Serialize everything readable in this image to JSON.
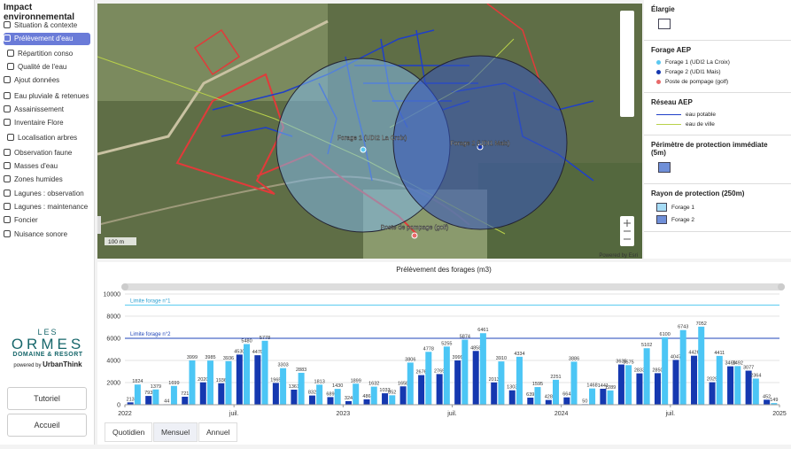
{
  "sidebar": {
    "title": "Impact environnemental",
    "items": [
      {
        "label": "Situation & contexte",
        "level": 0
      },
      {
        "label": "Prélèvement d'eau",
        "level": 0,
        "selected": true
      },
      {
        "label": "Répartition conso",
        "level": 1
      },
      {
        "label": "Qualité de l'eau",
        "level": 1
      },
      {
        "label": "Ajout données",
        "level": 0
      },
      {
        "label": "Eau pluviale & retenues",
        "level": 0
      },
      {
        "label": "Assainissement",
        "level": 0
      },
      {
        "label": "Inventaire Flore",
        "level": 0
      },
      {
        "label": "Localisation arbres",
        "level": 1
      },
      {
        "label": "Observation faune",
        "level": 0
      },
      {
        "label": "Masses d'eau",
        "level": 0
      },
      {
        "label": "Zones humides",
        "level": 0
      },
      {
        "label": "Lagunes : observation",
        "level": 0
      },
      {
        "label": "Lagunes : maintenance",
        "level": 0
      },
      {
        "label": "Foncier",
        "level": 0
      },
      {
        "label": "Nuisance sonore",
        "level": 0
      }
    ],
    "logo": {
      "line1": "LES",
      "line2": "ORMES",
      "line3": "DOMAINE & RESORT",
      "powered": "powered by",
      "brand": "UrbanThink"
    },
    "buttons": [
      "Tutoriel",
      "Accueil"
    ]
  },
  "map": {
    "labels": {
      "forage1": "Forage 1 (UDI2 La Croix)",
      "forage2": "Forage 2 (UDI1 Mais)",
      "poste": "Poste de pompage (golf)"
    },
    "scale": "100 m",
    "attribution": "Powered by Esri"
  },
  "legend": {
    "sections": [
      {
        "title": "Élargie",
        "items": []
      },
      {
        "title": "Forage AEP",
        "items": [
          "Forage 1 (UDI2 La Croix)",
          "Forage 2 (UDI1 Mais)",
          "Poste de pompage (golf)"
        ]
      },
      {
        "title": "Réseau AEP",
        "items": [
          "eau potable",
          "eau de ville"
        ]
      },
      {
        "title": "Périmètre de protection immédiate (5m)",
        "items": []
      },
      {
        "title": "Rayon de protection (250m)",
        "items": [
          "Forage 1",
          "Forage 2"
        ]
      }
    ]
  },
  "tabs": [
    "Quotidien",
    "Mensuel",
    "Annuel"
  ],
  "chart_data": {
    "type": "bar",
    "title": "Prélèvement des forages (m3)",
    "xlim": [
      0,
      36
    ],
    "xticks": [
      {
        "value": 0,
        "label": "2022"
      },
      {
        "value": 6,
        "label": "juil."
      },
      {
        "value": 12,
        "label": "2023"
      },
      {
        "value": 18,
        "label": "juil."
      },
      {
        "value": 24,
        "label": "2024"
      },
      {
        "value": 30,
        "label": "juil."
      },
      {
        "value": 36,
        "label": "2025"
      }
    ],
    "ylim": [
      0,
      10000
    ],
    "yticks": [
      0,
      2000,
      4000,
      6000,
      8000,
      10000
    ],
    "grid": true,
    "series": [
      {
        "name": "Forage 2",
        "color": "#1538b0",
        "values": [
          213,
          793,
          44,
          721,
          2020,
          1936,
          4530,
          4470,
          1965,
          1361,
          832,
          689,
          324,
          486,
          1033,
          1658,
          2676,
          2769,
          3999,
          4858,
          2013,
          1303,
          639,
          428,
          664,
          50,
          1441,
          3635,
          2833,
          2850,
          4047,
          4426,
          2029,
          3469,
          3077,
          452
        ]
      },
      {
        "name": "Forage 1",
        "color": "#4cc6f5",
        "values": [
          1824,
          1379,
          1699,
          3999,
          3985,
          3936,
          5480,
          5778,
          3303,
          2883,
          1813,
          1430,
          1899,
          1632,
          852,
          3806,
          4778,
          5255,
          5874,
          6461,
          3910,
          4334,
          1595,
          2251,
          3886,
          1468,
          1289,
          3575,
          5102,
          6100,
          6743,
          7052,
          4411,
          3492,
          2364,
          149
        ]
      }
    ],
    "reference_lines": [
      {
        "label": "Limite forage n°1",
        "value": 9000,
        "color": "#5bcbf0"
      },
      {
        "label": "Limite forage n°2",
        "value": 6000,
        "color": "#1f45b8"
      }
    ]
  }
}
